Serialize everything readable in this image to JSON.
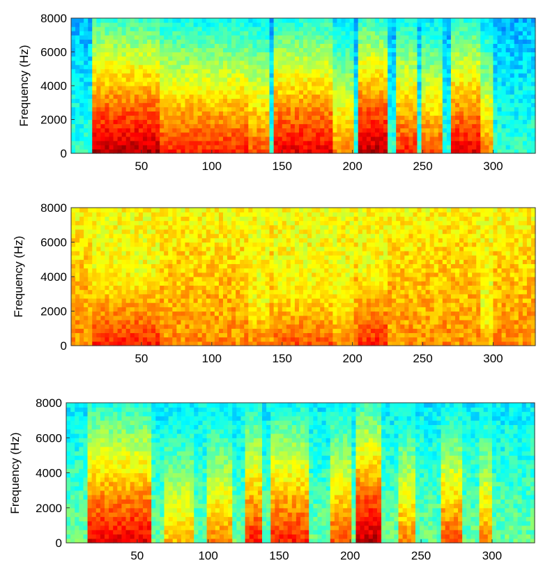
{
  "chart_data": [
    {
      "type": "heatmap",
      "panel": "spectrogram-clean",
      "ylabel": "Frequency (Hz)",
      "xlabel": "",
      "title": "",
      "xlim": [
        0,
        330
      ],
      "ylim": [
        0,
        8000
      ],
      "x_ticks": [
        50,
        100,
        150,
        200,
        250,
        300
      ],
      "y_ticks": [
        0,
        2000,
        4000,
        6000,
        8000
      ],
      "colormap": "jet",
      "background_level": 0.3,
      "speech_segments": [
        {
          "x_start": 15,
          "x_end": 64,
          "intensity": 0.95
        },
        {
          "x_start": 64,
          "x_end": 100,
          "intensity": 0.85
        },
        {
          "x_start": 100,
          "x_end": 125,
          "intensity": 0.85
        },
        {
          "x_start": 125,
          "x_end": 140,
          "intensity": 0.8
        },
        {
          "x_start": 145,
          "x_end": 185,
          "intensity": 0.9
        },
        {
          "x_start": 187,
          "x_end": 200,
          "intensity": 0.75
        },
        {
          "x_start": 205,
          "x_end": 225,
          "intensity": 0.95
        },
        {
          "x_start": 232,
          "x_end": 245,
          "intensity": 0.85
        },
        {
          "x_start": 250,
          "x_end": 263,
          "intensity": 0.8
        },
        {
          "x_start": 270,
          "x_end": 290,
          "intensity": 0.9
        },
        {
          "x_start": 292,
          "x_end": 300,
          "intensity": 0.75
        }
      ]
    },
    {
      "type": "heatmap",
      "panel": "spectrogram-noisy",
      "ylabel": "Frequency (Hz)",
      "xlabel": "",
      "title": "",
      "xlim": [
        0,
        330
      ],
      "ylim": [
        0,
        8000
      ],
      "x_ticks": [
        50,
        100,
        150,
        200,
        250,
        300
      ],
      "y_ticks": [
        0,
        2000,
        4000,
        6000,
        8000
      ],
      "colormap": "jet",
      "background_level": 0.62,
      "speech_segments": [
        {
          "x_start": 15,
          "x_end": 64,
          "intensity": 0.85
        },
        {
          "x_start": 125,
          "x_end": 140,
          "intensity": 0.75
        },
        {
          "x_start": 145,
          "x_end": 185,
          "intensity": 0.8
        },
        {
          "x_start": 187,
          "x_end": 200,
          "intensity": 0.75
        },
        {
          "x_start": 205,
          "x_end": 225,
          "intensity": 0.85
        },
        {
          "x_start": 292,
          "x_end": 300,
          "intensity": 0.7
        }
      ]
    },
    {
      "type": "heatmap",
      "panel": "spectrogram-enhanced",
      "ylabel": "Frequency (Hz)",
      "xlabel": "",
      "title": "",
      "xlim": [
        0,
        330
      ],
      "ylim": [
        0,
        8000
      ],
      "x_ticks": [
        50,
        100,
        150,
        200,
        250,
        300
      ],
      "y_ticks": [
        0,
        2000,
        4000,
        6000,
        8000
      ],
      "colormap": "jet",
      "background_level": 0.36,
      "speech_segments": [
        {
          "x_start": 15,
          "x_end": 60,
          "intensity": 0.9
        },
        {
          "x_start": 70,
          "x_end": 90,
          "intensity": 0.7
        },
        {
          "x_start": 100,
          "x_end": 118,
          "intensity": 0.75
        },
        {
          "x_start": 125,
          "x_end": 138,
          "intensity": 0.85
        },
        {
          "x_start": 145,
          "x_end": 170,
          "intensity": 0.85
        },
        {
          "x_start": 185,
          "x_end": 200,
          "intensity": 0.8
        },
        {
          "x_start": 205,
          "x_end": 222,
          "intensity": 0.95
        },
        {
          "x_start": 235,
          "x_end": 245,
          "intensity": 0.75
        },
        {
          "x_start": 265,
          "x_end": 280,
          "intensity": 0.8
        },
        {
          "x_start": 292,
          "x_end": 300,
          "intensity": 0.75
        }
      ]
    }
  ]
}
